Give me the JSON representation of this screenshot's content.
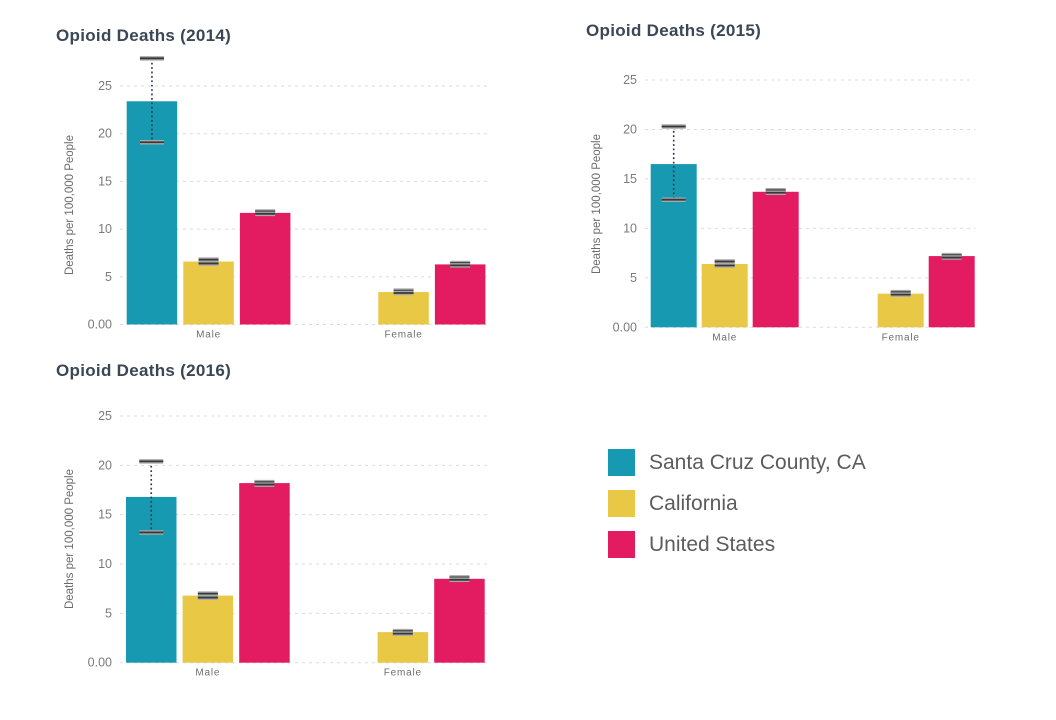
{
  "page": {
    "background_color": "#ffffff"
  },
  "colors": {
    "santa_cruz": "#1899B2",
    "california": "#E9C845",
    "united_states": "#E31C61",
    "title_text": "#3A4754",
    "gridline": "#DBDBDB",
    "error_bar": "#2D3A46"
  },
  "legend": {
    "items": [
      {
        "label": "Santa Cruz County, CA",
        "color": "#1899B2"
      },
      {
        "label": "California",
        "color": "#E9C845"
      },
      {
        "label": "United States",
        "color": "#E31C61"
      }
    ]
  },
  "chart_data": [
    {
      "type": "bar",
      "title": "Opioid Deaths (2014)",
      "ylabel": "Deaths per 100,000 People",
      "xlabel": "",
      "categories": [
        "Male",
        "Female"
      ],
      "yticks": [
        {
          "value": 0,
          "label": "0.00"
        },
        {
          "value": 5,
          "label": "5"
        },
        {
          "value": 10,
          "label": "10"
        },
        {
          "value": 15,
          "label": "15"
        },
        {
          "value": 20,
          "label": "20"
        },
        {
          "value": 25,
          "label": "25"
        }
      ],
      "ylim": [
        0,
        28.5
      ],
      "grid": "dashed-horizontal",
      "legend_position": "shared-separate",
      "series": [
        {
          "name": "Santa Cruz County, CA",
          "color": "#1899B2",
          "values": [
            23.4,
            null
          ],
          "error_bars": [
            [
              19.1,
              27.9
            ],
            null
          ]
        },
        {
          "name": "California",
          "color": "#E9C845",
          "values": [
            6.6,
            3.4
          ],
          "error_bars": [
            [
              6.4,
              6.8
            ],
            [
              3.3,
              3.55
            ]
          ]
        },
        {
          "name": "United States",
          "color": "#E31C61",
          "values": [
            11.7,
            6.3
          ],
          "error_bars": [
            [
              11.6,
              11.85
            ],
            [
              6.2,
              6.45
            ]
          ]
        }
      ]
    },
    {
      "type": "bar",
      "title": "Opioid Deaths (2015)",
      "ylabel": "Deaths per 100,000 People",
      "xlabel": "",
      "categories": [
        "Male",
        "Female"
      ],
      "yticks": [
        {
          "value": 0,
          "label": "0.00"
        },
        {
          "value": 5,
          "label": "5"
        },
        {
          "value": 10,
          "label": "10"
        },
        {
          "value": 15,
          "label": "15"
        },
        {
          "value": 20,
          "label": "20"
        },
        {
          "value": 25,
          "label": "25"
        }
      ],
      "ylim": [
        0,
        26.5
      ],
      "grid": "dashed-horizontal",
      "legend_position": "shared-separate",
      "series": [
        {
          "name": "Santa Cruz County, CA",
          "color": "#1899B2",
          "values": [
            16.5,
            null
          ],
          "error_bars": [
            [
              12.9,
              20.3
            ],
            null
          ]
        },
        {
          "name": "California",
          "color": "#E9C845",
          "values": [
            6.4,
            3.4
          ],
          "error_bars": [
            [
              6.25,
              6.65
            ],
            [
              3.3,
              3.55
            ]
          ]
        },
        {
          "name": "United States",
          "color": "#E31C61",
          "values": [
            13.7,
            7.2
          ],
          "error_bars": [
            [
              13.6,
              13.85
            ],
            [
              7.05,
              7.3
            ]
          ]
        }
      ]
    },
    {
      "type": "bar",
      "title": "Opioid Deaths (2016)",
      "ylabel": "Deaths per 100,000 People",
      "xlabel": "",
      "categories": [
        "Male",
        "Female"
      ],
      "yticks": [
        {
          "value": 0,
          "label": "0.00"
        },
        {
          "value": 5,
          "label": "5"
        },
        {
          "value": 10,
          "label": "10"
        },
        {
          "value": 15,
          "label": "15"
        },
        {
          "value": 20,
          "label": "20"
        },
        {
          "value": 25,
          "label": "25"
        }
      ],
      "ylim": [
        0,
        26
      ],
      "grid": "dashed-horizontal",
      "legend_position": "shared-separate",
      "series": [
        {
          "name": "Santa Cruz County, CA",
          "color": "#1899B2",
          "values": [
            16.8,
            null
          ],
          "error_bars": [
            [
              13.2,
              20.4
            ],
            null
          ]
        },
        {
          "name": "California",
          "color": "#E9C845",
          "values": [
            6.8,
            3.1
          ],
          "error_bars": [
            [
              6.6,
              7.0
            ],
            [
              2.95,
              3.2
            ]
          ]
        },
        {
          "name": "United States",
          "color": "#E31C61",
          "values": [
            18.2,
            8.5
          ],
          "error_bars": [
            [
              18.05,
              18.3
            ],
            [
              8.4,
              8.65
            ]
          ]
        }
      ]
    }
  ]
}
